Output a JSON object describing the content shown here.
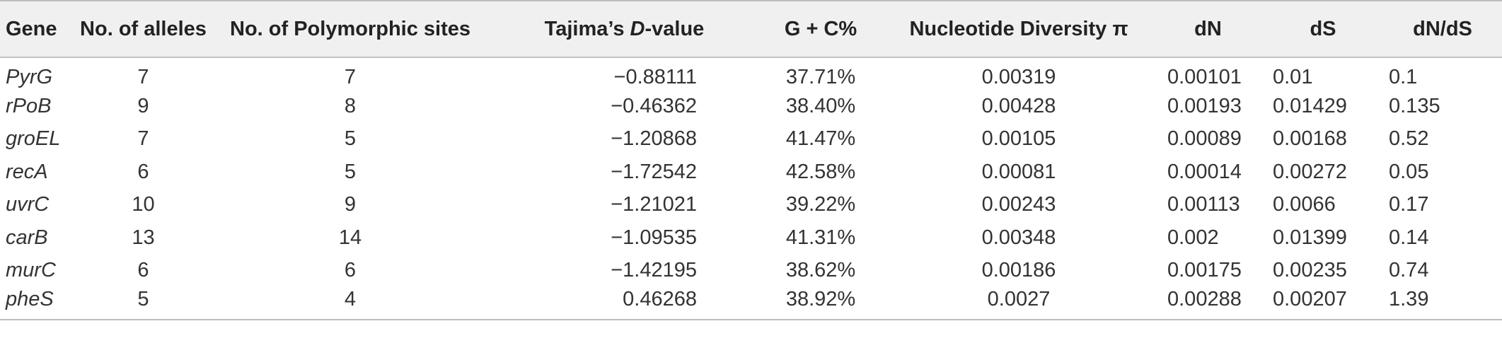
{
  "table": {
    "headers": {
      "gene": "Gene",
      "alleles": "No. of alleles",
      "polymorphic_sites": "No. of Polymorphic sites",
      "tajima_prefix": "Tajima’s ",
      "tajima_italic": "D",
      "tajima_suffix": "-value",
      "gc": "G + C%",
      "nucleotide_diversity": "Nucleotide Diversity π",
      "dn": "dN",
      "ds": "dS",
      "dnds": "dN/dS"
    },
    "rows": [
      {
        "gene": "PyrG",
        "alleles": "7",
        "poly": "7",
        "tajima": "−0.88111",
        "gc": "37.71%",
        "nd": "0.00319",
        "dn": "0.00101",
        "ds": "0.01",
        "dnds": "0.1"
      },
      {
        "gene": "rPoB",
        "alleles": "9",
        "poly": "8",
        "tajima": "−0.46362",
        "gc": "38.40%",
        "nd": "0.00428",
        "dn": "0.00193",
        "ds": "0.01429",
        "dnds": "0.135"
      },
      {
        "gene": "groEL",
        "alleles": "7",
        "poly": "5",
        "tajima": "−1.20868",
        "gc": "41.47%",
        "nd": "0.00105",
        "dn": "0.00089",
        "ds": "0.00168",
        "dnds": "0.52"
      },
      {
        "gene": "recA",
        "alleles": "6",
        "poly": "5",
        "tajima": "−1.72542",
        "gc": "42.58%",
        "nd": "0.00081",
        "dn": "0.00014",
        "ds": "0.00272",
        "dnds": "0.05"
      },
      {
        "gene": "uvrC",
        "alleles": "10",
        "poly": "9",
        "tajima": "−1.21021",
        "gc": "39.22%",
        "nd": "0.00243",
        "dn": "0.00113",
        "ds": "0.0066",
        "dnds": "0.17"
      },
      {
        "gene": "carB",
        "alleles": "13",
        "poly": "14",
        "tajima": "−1.09535",
        "gc": "41.31%",
        "nd": "0.00348",
        "dn": "0.002",
        "ds": "0.01399",
        "dnds": "0.14"
      },
      {
        "gene": "murC",
        "alleles": "6",
        "poly": "6",
        "tajima": "−1.42195",
        "gc": "38.62%",
        "nd": "0.00186",
        "dn": "0.00175",
        "ds": "0.00235",
        "dnds": "0.74"
      },
      {
        "gene": "pheS",
        "alleles": "5",
        "poly": "4",
        "tajima": "0.46268",
        "gc": "38.92%",
        "nd": "0.0027",
        "dn": "0.00288",
        "ds": "0.00207",
        "dnds": "1.39"
      }
    ]
  }
}
